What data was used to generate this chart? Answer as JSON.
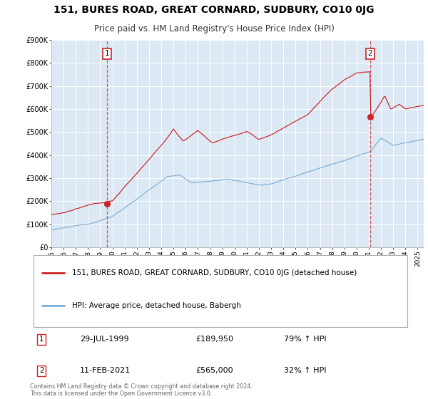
{
  "title": "151, BURES ROAD, GREAT CORNARD, SUDBURY, CO10 0JG",
  "subtitle": "Price paid vs. HM Land Registry's House Price Index (HPI)",
  "red_label": "151, BURES ROAD, GREAT CORNARD, SUDBURY, CO10 0JG (detached house)",
  "blue_label": "HPI: Average price, detached house, Babergh",
  "annotation1_date": "29-JUL-1999",
  "annotation1_price": "£189,950",
  "annotation1_hpi": "79% ↑ HPI",
  "annotation2_date": "11-FEB-2021",
  "annotation2_price": "£565,000",
  "annotation2_hpi": "32% ↑ HPI",
  "sale1_year": 1999.58,
  "sale1_value": 189950,
  "sale2_year": 2021.12,
  "sale2_value": 565000,
  "ylim": [
    0,
    900000
  ],
  "xlim_start": 1995.0,
  "xlim_end": 2025.5,
  "red_color": "#cc2222",
  "blue_color": "#7eaed4",
  "plot_bg": "#dce9f5",
  "grid_color": "#ffffff",
  "footer": "Contains HM Land Registry data © Crown copyright and database right 2024.\nThis data is licensed under the Open Government Licence v3.0."
}
